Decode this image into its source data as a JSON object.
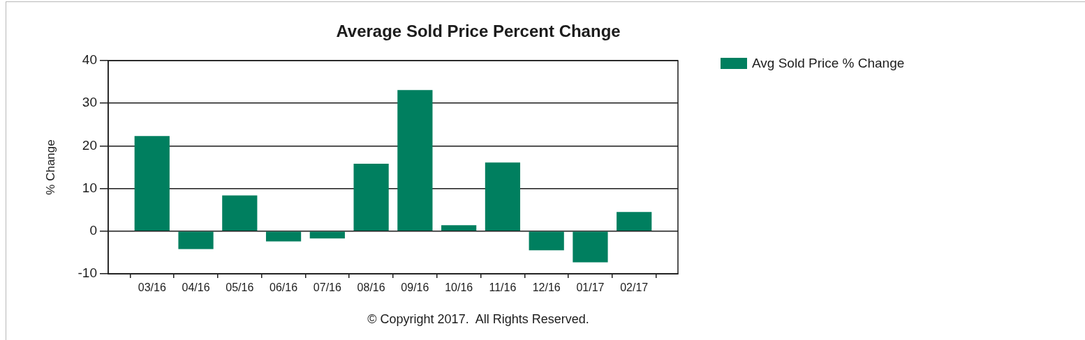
{
  "chart_data": {
    "type": "bar",
    "title": "Average Sold Price Percent Change",
    "ylabel": "% Change",
    "annotations": [
      "© Copyright 2017.  All Rights Reserved."
    ],
    "categories": [
      "03/16",
      "04/16",
      "05/16",
      "06/16",
      "07/16",
      "08/16",
      "09/16",
      "10/16",
      "11/16",
      "12/16",
      "01/17",
      "02/17"
    ],
    "series": [
      {
        "name": "Avg Sold Price % Change",
        "color": "#007f5f",
        "values": [
          22.3,
          -4.2,
          8.4,
          -2.4,
          -1.7,
          15.8,
          33.1,
          1.4,
          16.1,
          -4.5,
          -7.3,
          4.5
        ]
      }
    ],
    "ylim": [
      -10,
      40
    ],
    "yticks": [
      -10,
      0,
      10,
      20,
      30,
      40
    ],
    "grid": "y",
    "legend": "top right"
  }
}
